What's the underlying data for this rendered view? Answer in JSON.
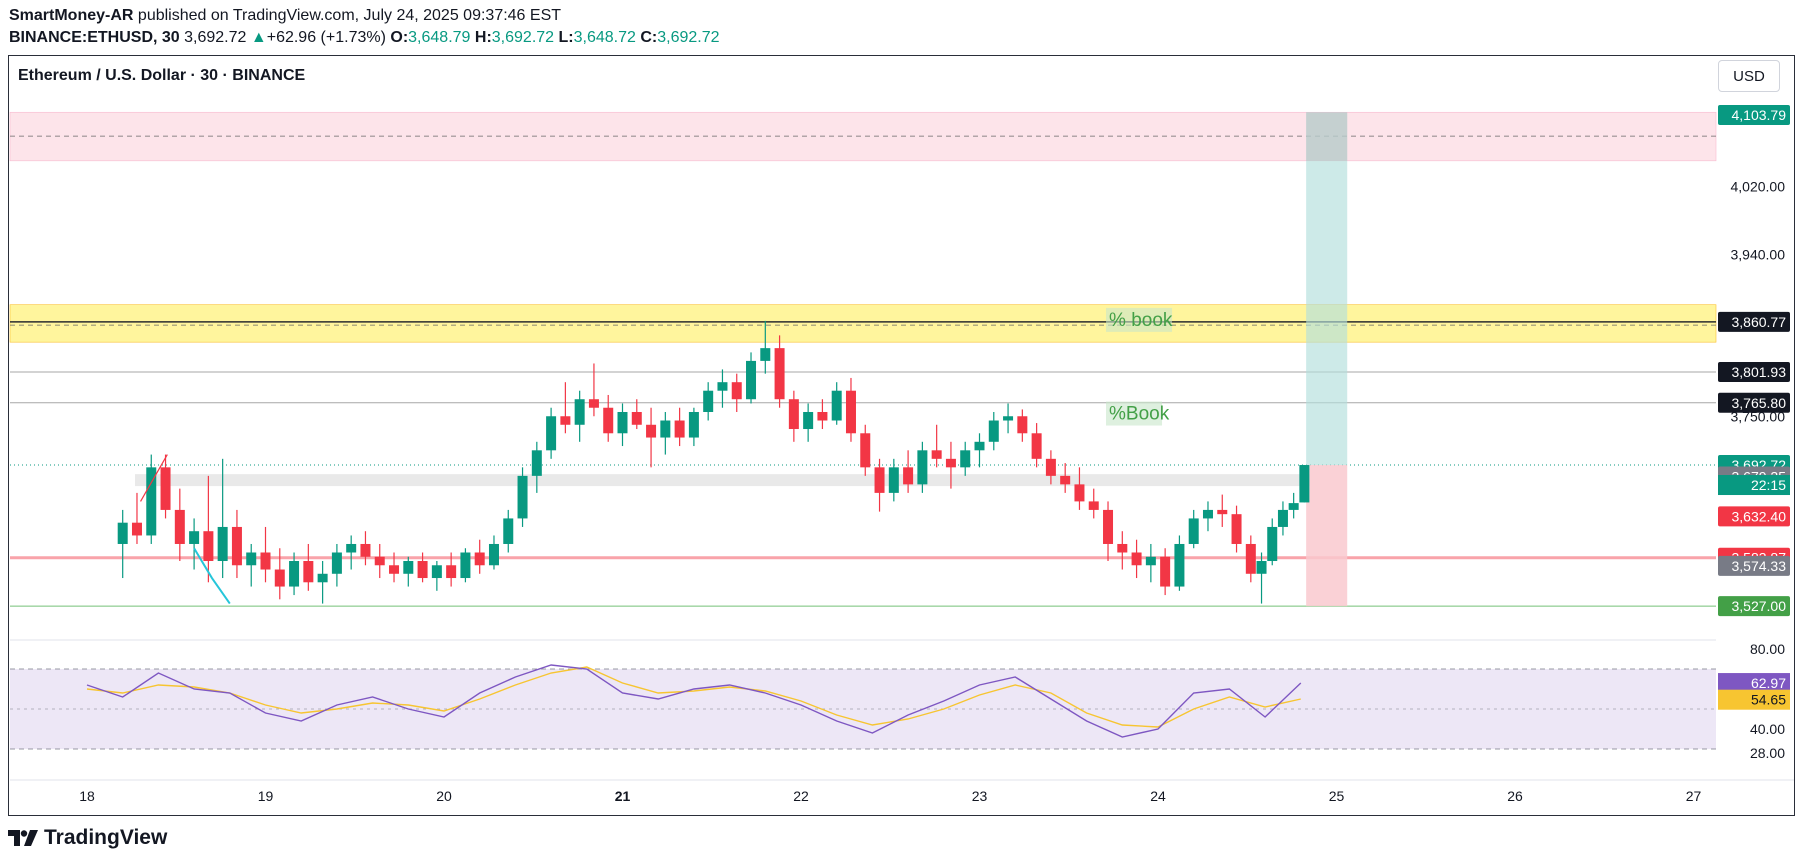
{
  "header": {
    "author": "SmartMoney-AR",
    "published_text": "published on TradingView.com, July 24, 2025 09:37:46 EST",
    "symbol": "BINANCE:ETHUSD, 30",
    "last": "3,692.72",
    "change_arrow": "▲",
    "change": "+62.96 (+1.73%)",
    "o_label": "O:",
    "o_value": "3,648.79",
    "h_label": "H:",
    "h_value": "3,692.72",
    "l_label": "L:",
    "l_value": "3,648.72",
    "c_label": "C:",
    "c_value": "3,692.72"
  },
  "chart_title": "Ethereum / U.S. Dollar · 30 · BINANCE",
  "currency_button": "USD",
  "footer": {
    "brand": "TradingView",
    "logo_icon": "tradingview-logo-icon"
  },
  "colors": {
    "up": "#089981",
    "down": "#f23645",
    "zone_red": "#fde4ea",
    "zone_yellow": "#fff59d",
    "target_green": "#b2dfdb",
    "stop_red": "#f9c9cf",
    "rsi": "#7e57c2",
    "rsi_ma": "#f7c531",
    "rsi_band": "#ede7f6"
  },
  "chart_data": [
    {
      "type": "candlestick",
      "title": "Ethereum / U.S. Dollar · 30 · BINANCE",
      "ylim": [
        3527,
        4140
      ],
      "grid": false,
      "x_ticks": [
        "18",
        "19",
        "20",
        "21",
        "22",
        "23",
        "24",
        "25",
        "26",
        "27"
      ],
      "y_ticks": [
        "4,020.00",
        "3,940.00",
        "3,750.00"
      ],
      "price_labels": [
        {
          "value": 4103.79,
          "text": "4,103.79",
          "color": "#089981"
        },
        {
          "value": 3860.77,
          "text": "3,860.77",
          "color": "#131722"
        },
        {
          "value": 3801.93,
          "text": "3,801.93",
          "color": "#131722"
        },
        {
          "value": 3765.8,
          "text": "3,765.80",
          "color": "#131722"
        },
        {
          "value": 3692.72,
          "text": "3,692.72",
          "color": "#089981"
        },
        {
          "value": 3679.25,
          "text": "3,679.25",
          "color": "#787b86"
        },
        {
          "value": 3632.4,
          "text": "3,632.40",
          "color": "#f23645"
        },
        {
          "value": 3583.87,
          "text": "3,583.87",
          "color": "#f23645"
        },
        {
          "value": 3574.33,
          "text": "3,574.33",
          "color": "#787b86"
        },
        {
          "value": 3527.0,
          "text": "3,527.00",
          "color": "#43a047"
        }
      ],
      "countdown": "22:15",
      "zones": [
        {
          "name": "supply-zone",
          "from": 4050,
          "to": 4107,
          "color": "#fde4ea",
          "mid": 4079
        },
        {
          "name": "resistance-zone",
          "from": 3837,
          "to": 3881,
          "color": "#fff59d",
          "mid": 3857
        }
      ],
      "lines": [
        {
          "name": "resistance-line",
          "value": 3860.77,
          "color": "#131722"
        },
        {
          "name": "level-3801",
          "value": 3801.93,
          "color": "#9e9e9e"
        },
        {
          "name": "level-3765",
          "value": 3765.8,
          "color": "#9e9e9e"
        },
        {
          "name": "stop-line",
          "value": 3583.87,
          "color": "#f23645"
        },
        {
          "name": "support-line",
          "value": 3527.0,
          "color": "#66bb6a"
        }
      ],
      "annotations": [
        {
          "text": "% book",
          "price": 3862,
          "day": 23.72
        },
        {
          "text": "%Book",
          "price": 3752,
          "day": 23.72
        }
      ],
      "position": {
        "entry": 3692.72,
        "target": 4107,
        "stop": 3527,
        "day_from": 24.83,
        "day_to": 25.06
      },
      "candles": [
        {
          "day": 18.2,
          "o": 3600,
          "h": 3640,
          "l": 3560,
          "c": 3625
        },
        {
          "day": 18.28,
          "o": 3625,
          "h": 3660,
          "l": 3600,
          "c": 3610
        },
        {
          "day": 18.36,
          "o": 3610,
          "h": 3705,
          "l": 3600,
          "c": 3690
        },
        {
          "day": 18.44,
          "o": 3690,
          "h": 3705,
          "l": 3630,
          "c": 3640
        },
        {
          "day": 18.52,
          "o": 3640,
          "h": 3665,
          "l": 3580,
          "c": 3600
        },
        {
          "day": 18.6,
          "o": 3600,
          "h": 3630,
          "l": 3570,
          "c": 3615
        },
        {
          "day": 18.68,
          "o": 3615,
          "h": 3680,
          "l": 3555,
          "c": 3580
        },
        {
          "day": 18.76,
          "o": 3580,
          "h": 3700,
          "l": 3560,
          "c": 3620
        },
        {
          "day": 18.84,
          "o": 3620,
          "h": 3640,
          "l": 3560,
          "c": 3575
        },
        {
          "day": 18.92,
          "o": 3575,
          "h": 3600,
          "l": 3550,
          "c": 3590
        },
        {
          "day": 19.0,
          "o": 3590,
          "h": 3620,
          "l": 3555,
          "c": 3570
        },
        {
          "day": 19.08,
          "o": 3570,
          "h": 3595,
          "l": 3535,
          "c": 3550
        },
        {
          "day": 19.16,
          "o": 3550,
          "h": 3590,
          "l": 3540,
          "c": 3580
        },
        {
          "day": 19.24,
          "o": 3580,
          "h": 3600,
          "l": 3545,
          "c": 3555
        },
        {
          "day": 19.32,
          "o": 3555,
          "h": 3580,
          "l": 3530,
          "c": 3565
        },
        {
          "day": 19.4,
          "o": 3565,
          "h": 3600,
          "l": 3550,
          "c": 3590
        },
        {
          "day": 19.48,
          "o": 3590,
          "h": 3610,
          "l": 3570,
          "c": 3600
        },
        {
          "day": 19.56,
          "o": 3600,
          "h": 3615,
          "l": 3575,
          "c": 3585
        },
        {
          "day": 19.64,
          "o": 3585,
          "h": 3600,
          "l": 3560,
          "c": 3575
        },
        {
          "day": 19.72,
          "o": 3575,
          "h": 3590,
          "l": 3555,
          "c": 3565
        },
        {
          "day": 19.8,
          "o": 3565,
          "h": 3585,
          "l": 3550,
          "c": 3580
        },
        {
          "day": 19.88,
          "o": 3580,
          "h": 3590,
          "l": 3555,
          "c": 3560
        },
        {
          "day": 19.96,
          "o": 3560,
          "h": 3580,
          "l": 3545,
          "c": 3575
        },
        {
          "day": 20.04,
          "o": 3575,
          "h": 3590,
          "l": 3550,
          "c": 3560
        },
        {
          "day": 20.12,
          "o": 3560,
          "h": 3595,
          "l": 3555,
          "c": 3590
        },
        {
          "day": 20.2,
          "o": 3590,
          "h": 3605,
          "l": 3565,
          "c": 3575
        },
        {
          "day": 20.28,
          "o": 3575,
          "h": 3610,
          "l": 3570,
          "c": 3600
        },
        {
          "day": 20.36,
          "o": 3600,
          "h": 3640,
          "l": 3590,
          "c": 3630
        },
        {
          "day": 20.44,
          "o": 3630,
          "h": 3690,
          "l": 3620,
          "c": 3680
        },
        {
          "day": 20.52,
          "o": 3680,
          "h": 3720,
          "l": 3660,
          "c": 3710
        },
        {
          "day": 20.6,
          "o": 3710,
          "h": 3760,
          "l": 3700,
          "c": 3750
        },
        {
          "day": 20.68,
          "o": 3750,
          "h": 3790,
          "l": 3730,
          "c": 3740
        },
        {
          "day": 20.76,
          "o": 3740,
          "h": 3780,
          "l": 3720,
          "c": 3770
        },
        {
          "day": 20.84,
          "o": 3770,
          "h": 3812,
          "l": 3750,
          "c": 3760
        },
        {
          "day": 20.92,
          "o": 3760,
          "h": 3775,
          "l": 3720,
          "c": 3730
        },
        {
          "day": 21.0,
          "o": 3730,
          "h": 3765,
          "l": 3715,
          "c": 3755
        },
        {
          "day": 21.08,
          "o": 3755,
          "h": 3770,
          "l": 3735,
          "c": 3740
        },
        {
          "day": 21.16,
          "o": 3740,
          "h": 3760,
          "l": 3690,
          "c": 3725
        },
        {
          "day": 21.24,
          "o": 3725,
          "h": 3755,
          "l": 3705,
          "c": 3745
        },
        {
          "day": 21.32,
          "o": 3745,
          "h": 3760,
          "l": 3715,
          "c": 3725
        },
        {
          "day": 21.4,
          "o": 3725,
          "h": 3760,
          "l": 3715,
          "c": 3755
        },
        {
          "day": 21.48,
          "o": 3755,
          "h": 3790,
          "l": 3745,
          "c": 3780
        },
        {
          "day": 21.56,
          "o": 3780,
          "h": 3805,
          "l": 3760,
          "c": 3790
        },
        {
          "day": 21.64,
          "o": 3790,
          "h": 3800,
          "l": 3755,
          "c": 3770
        },
        {
          "day": 21.72,
          "o": 3770,
          "h": 3825,
          "l": 3765,
          "c": 3815
        },
        {
          "day": 21.8,
          "o": 3815,
          "h": 3862,
          "l": 3800,
          "c": 3830
        },
        {
          "day": 21.88,
          "o": 3830,
          "h": 3845,
          "l": 3760,
          "c": 3770
        },
        {
          "day": 21.96,
          "o": 3770,
          "h": 3780,
          "l": 3720,
          "c": 3735
        },
        {
          "day": 22.04,
          "o": 3735,
          "h": 3765,
          "l": 3720,
          "c": 3755
        },
        {
          "day": 22.12,
          "o": 3755,
          "h": 3770,
          "l": 3735,
          "c": 3745
        },
        {
          "day": 22.2,
          "o": 3745,
          "h": 3790,
          "l": 3740,
          "c": 3780
        },
        {
          "day": 22.28,
          "o": 3780,
          "h": 3795,
          "l": 3720,
          "c": 3730
        },
        {
          "day": 22.36,
          "o": 3730,
          "h": 3740,
          "l": 3680,
          "c": 3690
        },
        {
          "day": 22.44,
          "o": 3690,
          "h": 3700,
          "l": 3638,
          "c": 3660
        },
        {
          "day": 22.52,
          "o": 3660,
          "h": 3700,
          "l": 3650,
          "c": 3690
        },
        {
          "day": 22.6,
          "o": 3690,
          "h": 3710,
          "l": 3660,
          "c": 3670
        },
        {
          "day": 22.68,
          "o": 3670,
          "h": 3720,
          "l": 3660,
          "c": 3710
        },
        {
          "day": 22.76,
          "o": 3710,
          "h": 3740,
          "l": 3690,
          "c": 3700
        },
        {
          "day": 22.84,
          "o": 3700,
          "h": 3720,
          "l": 3665,
          "c": 3690
        },
        {
          "day": 22.92,
          "o": 3690,
          "h": 3720,
          "l": 3680,
          "c": 3710
        },
        {
          "day": 23.0,
          "o": 3710,
          "h": 3730,
          "l": 3690,
          "c": 3720
        },
        {
          "day": 23.08,
          "o": 3720,
          "h": 3755,
          "l": 3710,
          "c": 3745
        },
        {
          "day": 23.16,
          "o": 3745,
          "h": 3765,
          "l": 3730,
          "c": 3750
        },
        {
          "day": 23.24,
          "o": 3750,
          "h": 3758,
          "l": 3720,
          "c": 3730
        },
        {
          "day": 23.32,
          "o": 3730,
          "h": 3742,
          "l": 3690,
          "c": 3700
        },
        {
          "day": 23.4,
          "o": 3700,
          "h": 3710,
          "l": 3670,
          "c": 3680
        },
        {
          "day": 23.48,
          "o": 3680,
          "h": 3695,
          "l": 3660,
          "c": 3670
        },
        {
          "day": 23.56,
          "o": 3670,
          "h": 3690,
          "l": 3640,
          "c": 3650
        },
        {
          "day": 23.64,
          "o": 3650,
          "h": 3665,
          "l": 3630,
          "c": 3640
        },
        {
          "day": 23.72,
          "o": 3640,
          "h": 3650,
          "l": 3580,
          "c": 3600
        },
        {
          "day": 23.8,
          "o": 3600,
          "h": 3615,
          "l": 3570,
          "c": 3590
        },
        {
          "day": 23.88,
          "o": 3590,
          "h": 3605,
          "l": 3560,
          "c": 3575
        },
        {
          "day": 23.96,
          "o": 3575,
          "h": 3600,
          "l": 3555,
          "c": 3585
        },
        {
          "day": 24.04,
          "o": 3585,
          "h": 3595,
          "l": 3540,
          "c": 3550
        },
        {
          "day": 24.12,
          "o": 3550,
          "h": 3610,
          "l": 3545,
          "c": 3600
        },
        {
          "day": 24.2,
          "o": 3600,
          "h": 3640,
          "l": 3595,
          "c": 3630
        },
        {
          "day": 24.28,
          "o": 3630,
          "h": 3650,
          "l": 3615,
          "c": 3640
        },
        {
          "day": 24.36,
          "o": 3640,
          "h": 3658,
          "l": 3620,
          "c": 3635
        },
        {
          "day": 24.44,
          "o": 3635,
          "h": 3645,
          "l": 3590,
          "c": 3600
        },
        {
          "day": 24.52,
          "o": 3600,
          "h": 3610,
          "l": 3555,
          "c": 3565
        },
        {
          "day": 24.58,
          "o": 3565,
          "h": 3590,
          "l": 3530,
          "c": 3580
        },
        {
          "day": 24.64,
          "o": 3580,
          "h": 3630,
          "l": 3575,
          "c": 3620
        },
        {
          "day": 24.7,
          "o": 3620,
          "h": 3650,
          "l": 3610,
          "c": 3640
        },
        {
          "day": 24.76,
          "o": 3640,
          "h": 3660,
          "l": 3630,
          "c": 3648
        },
        {
          "day": 24.82,
          "o": 3648.79,
          "h": 3692.72,
          "l": 3648.72,
          "c": 3692.72
        }
      ]
    },
    {
      "type": "line",
      "name": "RSI",
      "ylim": [
        25,
        82
      ],
      "y_ticks": [
        "80.00",
        "40.00",
        "28.00"
      ],
      "bands": [
        30,
        70
      ],
      "labels": [
        {
          "text": "62.97",
          "value": 62.97,
          "color": "#7e57c2"
        },
        {
          "text": "54.65",
          "value": 54.65,
          "color": "#f7c531"
        }
      ],
      "x": [
        18.0,
        18.2,
        18.4,
        18.6,
        18.8,
        19.0,
        19.2,
        19.4,
        19.6,
        19.8,
        20.0,
        20.2,
        20.4,
        20.6,
        20.8,
        21.0,
        21.2,
        21.4,
        21.6,
        21.8,
        22.0,
        22.2,
        22.4,
        22.6,
        22.8,
        23.0,
        23.2,
        23.4,
        23.6,
        23.8,
        24.0,
        24.2,
        24.4,
        24.6,
        24.8
      ],
      "rsi": [
        62,
        56,
        68,
        60,
        58,
        48,
        44,
        52,
        56,
        50,
        46,
        58,
        66,
        72,
        70,
        58,
        55,
        60,
        62,
        58,
        52,
        44,
        38,
        47,
        54,
        62,
        66,
        55,
        44,
        36,
        40,
        58,
        60,
        46,
        63
      ],
      "rsi_ma": [
        60,
        58,
        62,
        61,
        58,
        52,
        48,
        50,
        53,
        52,
        49,
        55,
        62,
        68,
        71,
        63,
        58,
        59,
        61,
        59,
        54,
        47,
        42,
        45,
        50,
        57,
        62,
        58,
        48,
        42,
        41,
        50,
        56,
        51,
        55
      ]
    }
  ]
}
